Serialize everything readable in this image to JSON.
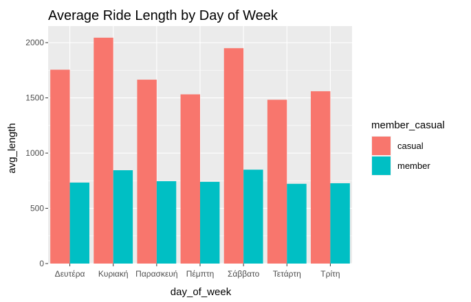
{
  "chart_data": {
    "type": "bar",
    "title": "Average Ride Length by Day of Week",
    "xlabel": "day_of_week",
    "ylabel": "avg_length",
    "categories": [
      "Δευτέρα",
      "Κυριακή",
      "Παρασκευή",
      "Πέμπτη",
      "Σάββατο",
      "Τετάρτη",
      "Τρίτη"
    ],
    "ylim": [
      0,
      2150
    ],
    "yticks": [
      0,
      500,
      1000,
      1500,
      2000
    ],
    "ytick_labels": [
      "0",
      "500",
      "1000",
      "1500",
      "2000"
    ],
    "grid": true,
    "legend": {
      "title": "member_casual",
      "position": "right"
    },
    "series": [
      {
        "name": "casual",
        "color": "#F8766D",
        "values": [
          1755,
          2045,
          1665,
          1532,
          1950,
          1483,
          1560
        ]
      },
      {
        "name": "member",
        "color": "#00BFC4",
        "values": [
          733,
          845,
          746,
          740,
          850,
          722,
          727
        ]
      }
    ],
    "panel_background": "#EBEBEB",
    "grid_color": "#FFFFFF"
  }
}
